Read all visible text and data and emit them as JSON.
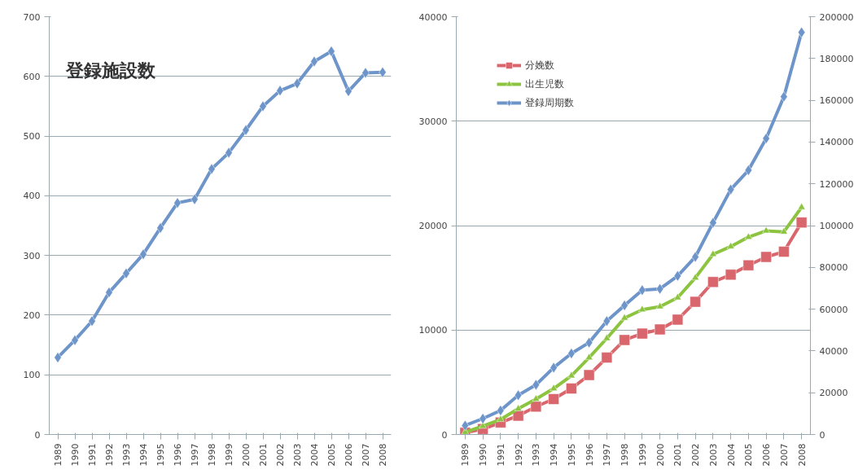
{
  "chart_data": [
    {
      "type": "line",
      "title": "登録施設数",
      "categories": [
        "1989",
        "1990",
        "1991",
        "1992",
        "1993",
        "1994",
        "1995",
        "1996",
        "1997",
        "1998",
        "1999",
        "2000",
        "2001",
        "2002",
        "2003",
        "2004",
        "2005",
        "2006",
        "2007",
        "2008"
      ],
      "series": [
        {
          "color": "#6d95c9",
          "values": [
            129,
            158,
            190,
            238,
            270,
            302,
            346,
            388,
            394,
            445,
            472,
            510,
            550,
            576,
            588,
            625,
            642,
            575,
            606,
            607
          ]
        }
      ],
      "ylim": [
        0,
        700
      ],
      "yticks": [
        0,
        100,
        200,
        300,
        400,
        500,
        600,
        700
      ],
      "grid": "y",
      "marker": "diamond",
      "legend": false
    },
    {
      "type": "line",
      "categories": [
        "1989",
        "1990",
        "1991",
        "1992",
        "1993",
        "1994",
        "1995",
        "1996",
        "1997",
        "1998",
        "1999",
        "2000",
        "2001",
        "2002",
        "2003",
        "2004",
        "2005",
        "2006",
        "2007",
        "2008"
      ],
      "series": [
        {
          "name": "分娩数",
          "color": "#d9666c",
          "marker": "square",
          "values": [
            170,
            520,
            1150,
            1800,
            2670,
            3390,
            4400,
            5690,
            7360,
            9050,
            9660,
            10060,
            11000,
            12700,
            14600,
            15300,
            16200,
            17000,
            17500,
            20300
          ]
        },
        {
          "name": "出生児数",
          "color": "#8cc43f",
          "marker": "triangle",
          "values": [
            230,
            800,
            1440,
            2470,
            3390,
            4400,
            5630,
            7360,
            9200,
            11150,
            11950,
            12240,
            13100,
            15000,
            17250,
            18000,
            18900,
            19500,
            19400,
            21750
          ]
        },
        {
          "name": "登録周期数",
          "color": "#6d95c9",
          "marker": "diamond",
          "axis": "y2",
          "values": [
            4300,
            7600,
            11500,
            18800,
            23800,
            32000,
            38800,
            44000,
            54300,
            61800,
            69100,
            69700,
            75900,
            85000,
            101400,
            117300,
            126500,
            141700,
            161700,
            192500
          ]
        }
      ],
      "ylim": [
        0,
        40000
      ],
      "yticks": [
        0,
        10000,
        20000,
        30000,
        40000
      ],
      "y2lim": [
        0,
        200000
      ],
      "y2ticks": [
        0,
        20000,
        40000,
        60000,
        80000,
        100000,
        120000,
        140000,
        160000,
        180000,
        200000
      ],
      "grid": "y",
      "legend": "top left"
    }
  ]
}
